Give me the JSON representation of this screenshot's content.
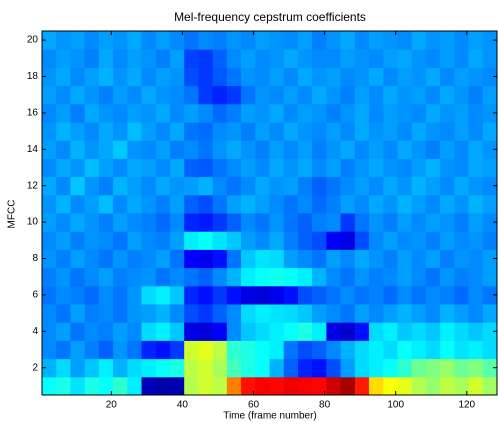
{
  "chart_data": {
    "type": "heatmap",
    "title": "Mel-frequency cepstrum coefficients",
    "xlabel": "Time (frame number)",
    "ylabel": "MFCC",
    "colormap": "jet",
    "clim": [
      0,
      10
    ],
    "x_edges": [
      0.5,
      4.5,
      8.5,
      12.5,
      16.5,
      20.5,
      24.5,
      28.5,
      32.5,
      36.5,
      40.5,
      44.5,
      48.5,
      52.5,
      56.5,
      60.5,
      64.5,
      68.5,
      72.5,
      76.5,
      80.5,
      84.5,
      88.5,
      92.5,
      96.5,
      100.5,
      104.5,
      108.5,
      112.5,
      116.5,
      120.5,
      124.5,
      128.5
    ],
    "y": [
      1,
      2,
      3,
      4,
      5,
      6,
      7,
      8,
      9,
      10,
      11,
      12,
      13,
      14,
      15,
      16,
      17,
      18,
      19,
      20
    ],
    "xlim": [
      0.5,
      128.5
    ],
    "ylim": [
      0.5,
      20.5
    ],
    "xticks": [
      20,
      40,
      60,
      80,
      100,
      120
    ],
    "yticks": [
      2,
      4,
      6,
      8,
      10,
      12,
      14,
      16,
      18,
      20
    ],
    "values": [
      [
        3.8,
        4,
        3.5,
        4,
        3.8,
        4.2,
        3.6,
        0.6,
        0.4,
        0.5,
        5.5,
        5.8,
        5.6,
        7.5,
        8.6,
        8.8,
        8.7,
        8.9,
        8.8,
        8.7,
        9.2,
        9.6,
        8.5,
        6.6,
        6.2,
        6,
        5.5,
        5.2,
        5.6,
        5.4,
        5.8,
        5.3
      ],
      [
        3,
        3.4,
        2.8,
        3.2,
        3.6,
        3,
        3.4,
        3.6,
        3.8,
        4,
        5.6,
        5.8,
        5.4,
        4.4,
        4,
        3.8,
        3,
        2.2,
        1.6,
        1.4,
        2,
        2.8,
        3.4,
        3.6,
        3.8,
        4.2,
        4.8,
        5,
        5.2,
        4.8,
        5,
        4.6
      ],
      [
        2.6,
        2.4,
        2.8,
        2.5,
        2.2,
        2.7,
        2.4,
        1.6,
        1.4,
        1.8,
        5.8,
        6,
        5.6,
        4.2,
        4,
        3.8,
        3.6,
        2.4,
        2,
        2.2,
        2.6,
        3,
        3.4,
        3.6,
        3.4,
        3.8,
        3.6,
        3.4,
        3.8,
        3.5,
        3.6,
        3.4
      ],
      [
        2.6,
        2.8,
        2.4,
        2.6,
        2.5,
        2.8,
        2.6,
        3.4,
        3.6,
        3.2,
        1,
        0.9,
        1.2,
        2.6,
        3.2,
        3.4,
        3.6,
        3.8,
        4,
        3.6,
        1,
        0.8,
        1.4,
        3.4,
        3.6,
        3.2,
        3.4,
        3.2,
        3.6,
        3.4,
        3.2,
        3.4
      ],
      [
        2.6,
        2.4,
        2.8,
        2.5,
        2.6,
        2.4,
        2.7,
        2.8,
        3,
        2.6,
        2,
        1.8,
        2.2,
        2.6,
        3.4,
        3.6,
        3.5,
        3.4,
        3.2,
        2.8,
        2.6,
        2.4,
        2.8,
        2.6,
        2.8,
        3,
        2.8,
        2.6,
        3,
        2.8,
        2.6,
        2.9
      ],
      [
        2.4,
        2.6,
        2.5,
        2.3,
        2.6,
        2.4,
        2.7,
        3.4,
        3.6,
        3.2,
        1.6,
        1.4,
        1.8,
        1.4,
        1,
        0.9,
        1.1,
        1.4,
        2,
        2.2,
        2.4,
        2.6,
        2.4,
        2.5,
        2.3,
        2.6,
        2.4,
        2.6,
        2.5,
        2.3,
        2.6,
        2.4
      ],
      [
        2.5,
        2.7,
        2.4,
        2.6,
        2.8,
        2.5,
        2.6,
        2.7,
        2.4,
        2.6,
        2.4,
        2.2,
        2.6,
        3,
        3.6,
        3.8,
        3.9,
        3.8,
        3.6,
        3,
        2.6,
        2.4,
        2.7,
        2.5,
        2.6,
        2.8,
        2.6,
        2.4,
        2.7,
        2.5,
        2.6,
        2.8
      ],
      [
        2.7,
        2.5,
        2.8,
        2.6,
        2.4,
        2.7,
        2.5,
        2.6,
        2.8,
        2.4,
        1.2,
        1.1,
        1.4,
        2.4,
        3.2,
        3.5,
        3.4,
        2.8,
        2.6,
        2.4,
        2.8,
        2.6,
        2.9,
        2.7,
        2.5,
        2.8,
        2.6,
        2.8,
        2.5,
        2.7,
        2.6,
        2.8
      ],
      [
        2.6,
        2.8,
        2.5,
        2.7,
        2.6,
        2.4,
        2.8,
        2.6,
        2.5,
        2.8,
        3.6,
        3.8,
        3.5,
        3.2,
        2.8,
        2.6,
        2.9,
        2.5,
        2.2,
        2,
        1.2,
        1,
        2,
        2.6,
        2.8,
        2.6,
        2.7,
        2.5,
        2.8,
        2.6,
        2.7,
        2.5
      ],
      [
        2.8,
        2.6,
        2.9,
        2.7,
        2.5,
        2.8,
        2.6,
        2.5,
        2.3,
        2.6,
        1.6,
        1.5,
        1.8,
        2.2,
        2.6,
        2.4,
        2.7,
        2.4,
        2.2,
        2.5,
        2.6,
        1.8,
        2.4,
        2.7,
        2.5,
        2.8,
        2.6,
        2.8,
        2.7,
        2.5,
        2.8,
        2.6
      ],
      [
        2.7,
        3,
        2.6,
        2.8,
        3.1,
        2.6,
        2.9,
        2.7,
        2.5,
        2.8,
        2.2,
        2,
        2.4,
        2.8,
        3,
        2.8,
        2.6,
        2.4,
        2.6,
        2.3,
        2.5,
        2.8,
        2.6,
        2.9,
        2.7,
        3,
        2.8,
        2.6,
        2.9,
        2.7,
        3,
        2.8
      ],
      [
        2.9,
        2.6,
        3.2,
        2.7,
        2.5,
        3,
        2.8,
        2.6,
        2.9,
        2.7,
        2.8,
        3,
        2.6,
        2.4,
        2.6,
        2.9,
        2.7,
        2.8,
        2.5,
        2.2,
        2.4,
        2.6,
        2.8,
        2.6,
        2.9,
        2.7,
        3,
        2.8,
        2.6,
        2.9,
        2.7,
        2.6
      ],
      [
        2.6,
        2.9,
        2.7,
        3.1,
        2.8,
        2.6,
        2.9,
        2.8,
        2.6,
        2.9,
        2.2,
        2.1,
        2.4,
        2.6,
        2.8,
        2.6,
        2.9,
        2.7,
        2.9,
        2.6,
        2.8,
        2.5,
        2.7,
        2.9,
        2.7,
        2.6,
        2.8,
        3,
        2.7,
        2.6,
        2.9,
        2.8
      ],
      [
        2.8,
        2.6,
        3,
        2.7,
        2.9,
        3.2,
        2.7,
        2.6,
        2.8,
        2.5,
        2.6,
        2.4,
        2.7,
        2.9,
        2.7,
        2.5,
        2.8,
        2.6,
        2.8,
        2.5,
        2.7,
        2.9,
        2.6,
        2.8,
        2.6,
        2.9,
        2.7,
        2.5,
        2.8,
        2.6,
        2.9,
        2.7
      ],
      [
        2.7,
        3,
        2.8,
        2.6,
        2.9,
        2.7,
        3.1,
        2.8,
        2.6,
        2.9,
        2.4,
        2.3,
        2.6,
        2.7,
        2.5,
        2.8,
        2.6,
        2.9,
        2.7,
        2.6,
        2.8,
        2.6,
        2.9,
        2.7,
        2.8,
        2.6,
        2.9,
        2.7,
        2.6,
        2.8,
        2.6,
        2.9
      ],
      [
        2.6,
        2.8,
        2.5,
        2.9,
        2.7,
        2.6,
        2.8,
        2.7,
        2.9,
        2.6,
        2.8,
        2.6,
        2.3,
        2.5,
        2.8,
        2.7,
        2.9,
        2.6,
        2.8,
        2.7,
        2.5,
        2.7,
        2.9,
        2.6,
        2.8,
        2.7,
        2.6,
        2.9,
        2.7,
        2.8,
        2.6,
        2.7
      ],
      [
        2.8,
        2.6,
        2.9,
        2.7,
        2.5,
        2.8,
        2.6,
        2.9,
        2.7,
        2.6,
        2.4,
        1.8,
        1.6,
        1.8,
        2.4,
        2.7,
        2.6,
        2.8,
        2.6,
        2.9,
        2.7,
        2.5,
        2.8,
        2.6,
        2.9,
        2.7,
        2.8,
        2.6,
        2.9,
        2.7,
        2.5,
        2.8
      ],
      [
        2.7,
        2.9,
        2.6,
        2.8,
        3,
        2.7,
        2.9,
        2.6,
        2.8,
        2.7,
        2,
        1.8,
        2.1,
        2.4,
        2.7,
        2.6,
        2.8,
        2.6,
        2.9,
        2.7,
        2.8,
        2.6,
        2.7,
        2.9,
        2.6,
        2.8,
        2.7,
        2.9,
        2.6,
        2.8,
        2.7,
        2.6
      ],
      [
        2.6,
        2.8,
        2.7,
        2.5,
        2.9,
        2.6,
        2.8,
        2.7,
        2.5,
        2.8,
        1.9,
        1.8,
        2.2,
        2.6,
        2.8,
        2.6,
        2.7,
        2.9,
        2.7,
        2.6,
        2.6,
        2.8,
        2.7,
        2.6,
        2.8,
        2.9,
        2.7,
        2.6,
        2.8,
        2.6,
        2.9,
        2.7
      ],
      [
        2.9,
        2.7,
        2.8,
        2.6,
        2.8,
        2.7,
        2.9,
        2.6,
        2.8,
        2.6,
        2.4,
        2.6,
        2.5,
        2.7,
        2.6,
        2.8,
        2.7,
        2.6,
        2.8,
        2.5,
        2.7,
        2.9,
        2.6,
        2.8,
        2.7,
        2.6,
        2.9,
        2.7,
        2.8,
        2.6,
        2.8,
        2.7
      ]
    ]
  }
}
